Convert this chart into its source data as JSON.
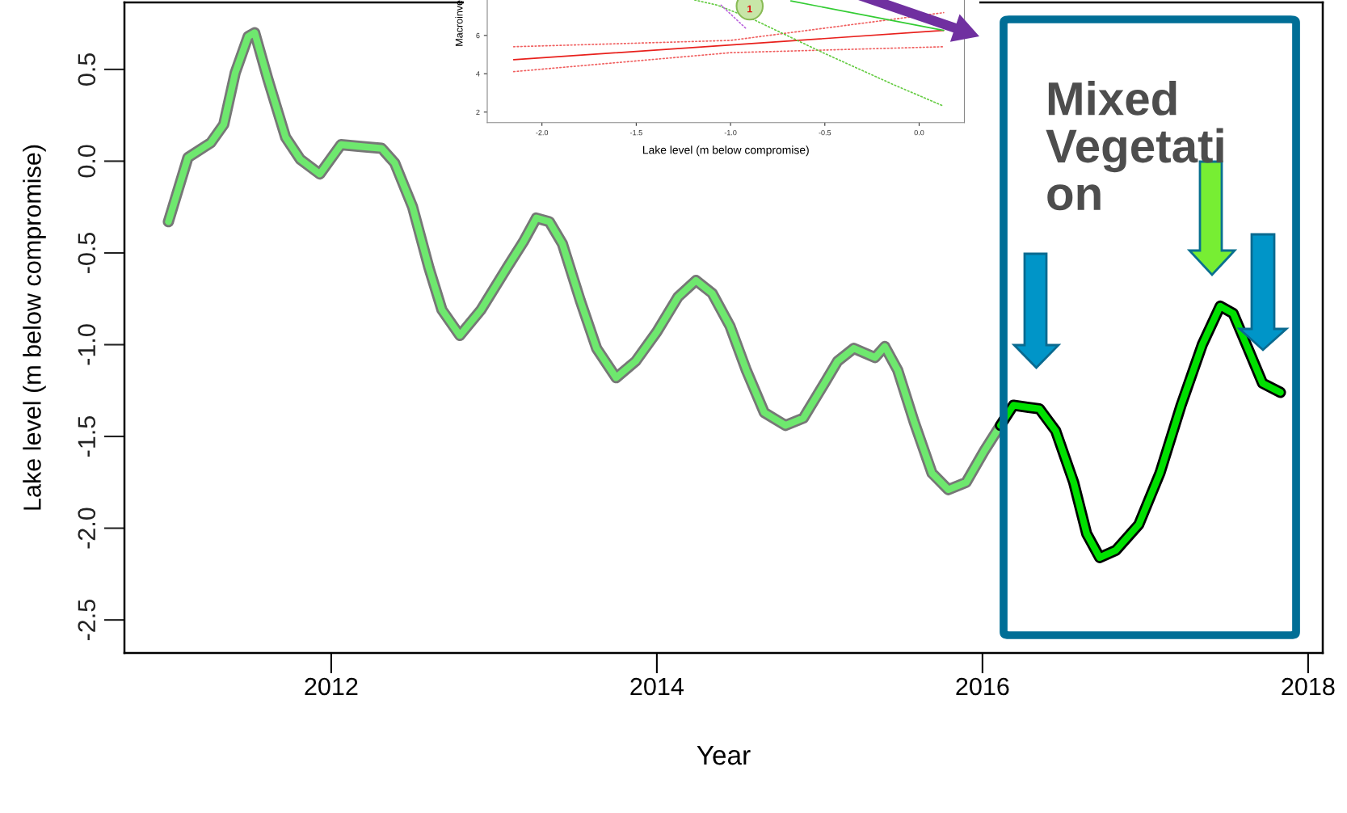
{
  "chart_data": [
    {
      "type": "line",
      "xlabel": "Year",
      "ylabel": "Lake level (m below compromise)",
      "xlim": [
        2010.73,
        2018.09
      ],
      "xticks": [
        2012,
        2014,
        2016,
        2018
      ],
      "ylim": [
        -2.68,
        0.865
      ],
      "yticks": [
        -2.5,
        {
          "value": -2.0,
          "label": "-2.0"
        },
        -1.5,
        {
          "value": -1.0,
          "label": "-1.0"
        },
        -0.5,
        {
          "value": 0.0,
          "label": "0.0"
        },
        0.5
      ],
      "grid": false,
      "legend": false,
      "series": [
        {
          "color": "#6ee86e",
          "x": [
            2011.0,
            2011.12,
            2011.26,
            2011.34,
            2011.41,
            2011.49,
            2011.53,
            2011.61,
            2011.72,
            2011.81,
            2011.93,
            2012.06,
            2012.18,
            2012.31,
            2012.39,
            2012.5,
            2012.6,
            2012.68,
            2012.79,
            2012.92,
            2013.08,
            2013.18,
            2013.26,
            2013.34,
            2013.42,
            2013.53,
            2013.63,
            2013.75,
            2013.87,
            2014.0,
            2014.13,
            2014.24,
            2014.34,
            2014.45,
            2014.55,
            2014.66,
            2014.79,
            2014.9,
            2015.03,
            2015.11,
            2015.21,
            2015.34,
            2015.4,
            2015.48,
            2015.58,
            2015.69,
            2015.79,
            2015.9,
            2016.01,
            2016.11
          ],
          "values": [
            -0.33,
            0.02,
            0.1,
            0.2,
            0.48,
            0.68,
            0.7,
            0.45,
            0.13,
            0.01,
            -0.07,
            0.09,
            0.08,
            0.07,
            -0.01,
            -0.25,
            -0.58,
            -0.81,
            -0.95,
            -0.81,
            -0.58,
            -0.44,
            -0.31,
            -0.33,
            -0.45,
            -0.76,
            -1.02,
            -1.18,
            -1.09,
            -0.93,
            -0.74,
            -0.65,
            -0.72,
            -0.9,
            -1.14,
            -1.37,
            -1.44,
            -1.4,
            -1.21,
            -1.09,
            -1.02,
            -1.07,
            -1.01,
            -1.14,
            -1.42,
            -1.7,
            -1.79,
            -1.75,
            -1.58,
            -1.44
          ]
        },
        {
          "color": "#00e000",
          "x": [
            2016.11,
            2016.19,
            2016.35,
            2016.45,
            2016.56,
            2016.64,
            2016.72,
            2016.82,
            2016.96,
            2017.09,
            2017.22,
            2017.35,
            2017.46,
            2017.54,
            2017.64,
            2017.72,
            2017.83
          ],
          "values": [
            -1.44,
            -1.33,
            -1.35,
            -1.47,
            -1.75,
            -2.03,
            -2.16,
            -2.12,
            -1.98,
            -1.7,
            -1.33,
            -1.0,
            -0.79,
            -0.83,
            -1.04,
            -1.21,
            -1.26
          ]
        }
      ],
      "annotations": [
        "Mixed\nVegetati\non"
      ]
    },
    {
      "type": "line",
      "xlabel": "Lake level (m below compromise)",
      "ylabel": "Macroinve",
      "xlim": [
        -2.29,
        0.24
      ],
      "xticks": [
        {
          "value": -2.0,
          "label": "-2.0"
        },
        {
          "value": -1.5,
          "label": "-1.5"
        },
        {
          "value": -1.0,
          "label": "-1.0"
        },
        {
          "value": -0.5,
          "label": "-0.5"
        },
        {
          "value": 0.0,
          "label": "0.0"
        }
      ],
      "ylim": [
        1.45,
        7.85
      ],
      "yticks": [
        2,
        4,
        6
      ],
      "grid": false,
      "legend": false,
      "series": [
        {
          "color": "#e8201c",
          "line_style": "solid",
          "x": [
            -2.15,
            0.13
          ],
          "values": [
            4.73,
            6.26
          ]
        },
        {
          "color": "#f06060",
          "line_style": "dotted",
          "x": [
            -2.15,
            -1.0,
            0.13
          ],
          "values": [
            5.41,
            5.74,
            7.19
          ]
        },
        {
          "color": "#f06060",
          "line_style": "dotted",
          "x": [
            -2.15,
            -1.0,
            0.13
          ],
          "values": [
            4.11,
            5.1,
            5.41
          ]
        },
        {
          "color": "#33cc33",
          "line_style": "solid",
          "x": [
            -0.68,
            0.13
          ],
          "values": [
            7.8,
            6.26
          ]
        },
        {
          "color": "#66cc44",
          "line_style": "dotted",
          "x": [
            -1.19,
            -1.07,
            -0.88,
            -0.51,
            -0.14,
            0.13
          ],
          "values": [
            7.85,
            7.58,
            6.84,
            5.1,
            3.45,
            2.31
          ]
        },
        {
          "color": "#bb66dd",
          "line_style": "dotted",
          "x": [
            -1.05,
            -0.92
          ],
          "values": [
            7.58,
            6.38
          ]
        }
      ],
      "annotations": [
        "1"
      ]
    }
  ]
}
